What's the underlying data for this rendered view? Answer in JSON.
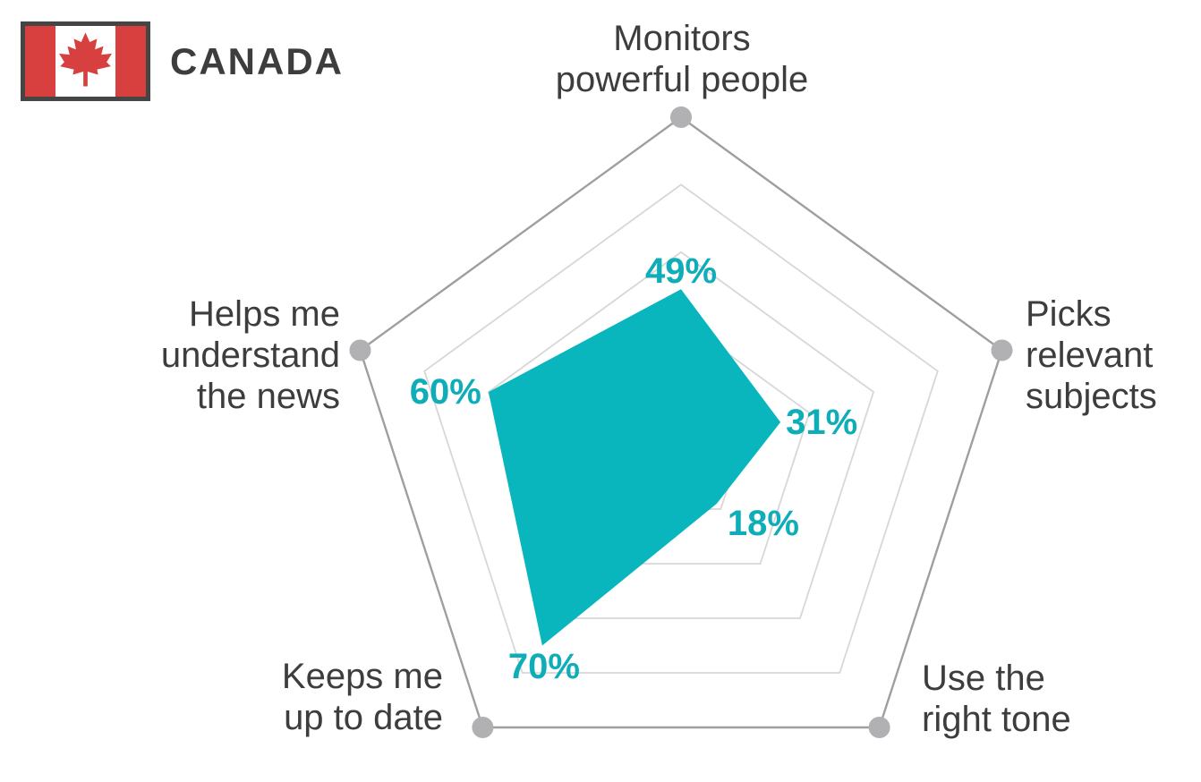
{
  "header": {
    "title": "CANADA",
    "flag_icon": "canada-flag-icon"
  },
  "colors": {
    "series_fill": "#09b6bd",
    "value_label_teal": "#0fadb8",
    "grid_inner": "#d7d7d7",
    "grid_outer": "#9f9fa1",
    "vertex_dot": "#b1b1b4",
    "label_text": "#3d3d3d",
    "flag_red": "#d8403f",
    "flag_border": "#454545",
    "flag_white": "#ffffff",
    "background": "#ffffff"
  },
  "chart_data": {
    "type": "radar",
    "title": "CANADA",
    "categories": [
      "Monitors powerful people",
      "Picks relevant subjects",
      "Use the right tone",
      "Keeps me up to date",
      "Helps me understand the news"
    ],
    "values": [
      49,
      31,
      18,
      70,
      60
    ],
    "unit": "%",
    "max": 100,
    "grid_levels_pct": [
      20,
      40,
      60,
      80,
      100
    ],
    "axis_labels_display": [
      "Monitors\npowerful people",
      "Picks\nrelevant\nsubjects",
      "Use the\nright tone",
      "Keeps me\nup to date",
      "Helps me\nunderstand\nthe news"
    ],
    "legend": false,
    "grid": true
  }
}
